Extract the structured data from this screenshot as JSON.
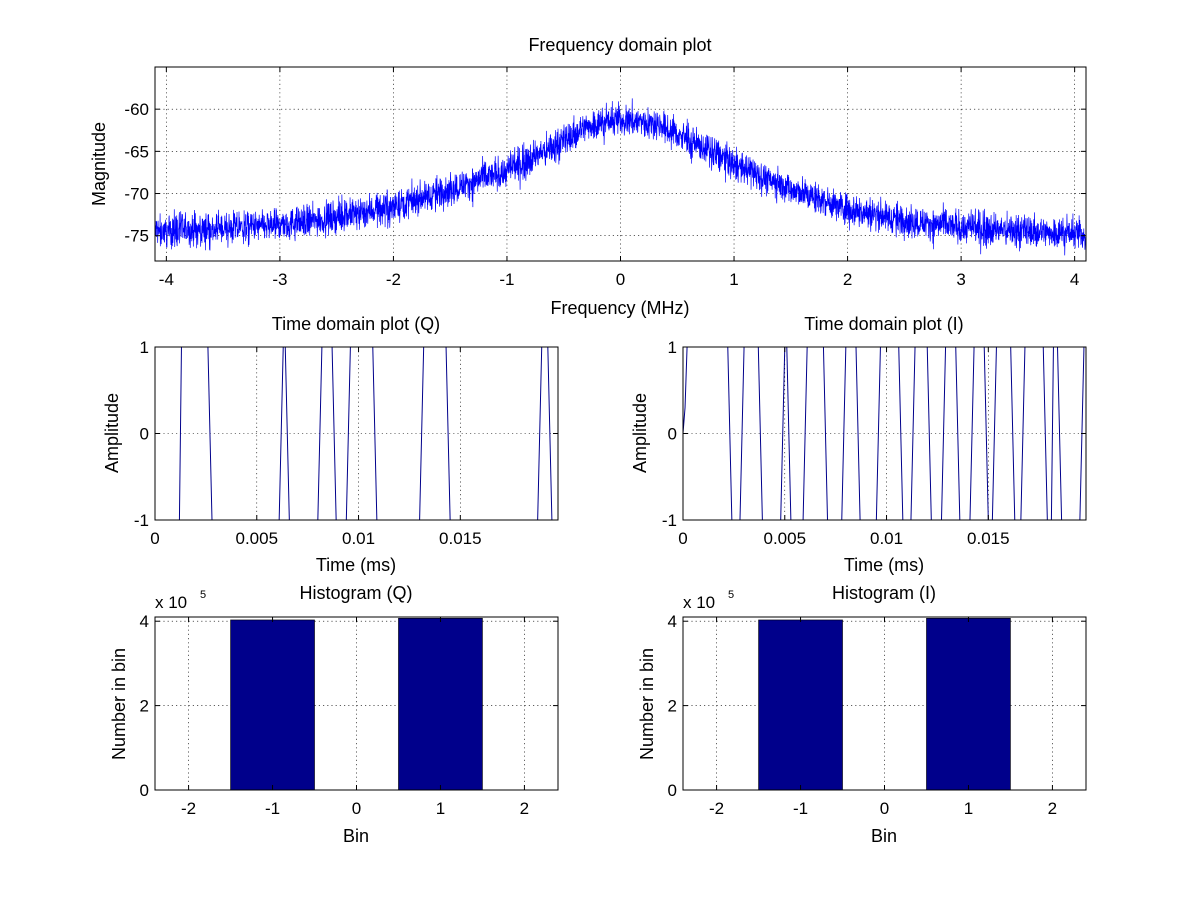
{
  "chart_data": [
    {
      "id": "freq",
      "type": "line",
      "title": "Frequency domain plot",
      "xlabel": "Frequency (MHz)",
      "ylabel": "Magnitude",
      "xlim": [
        -4.1,
        4.1
      ],
      "ylim": [
        -78,
        -55
      ],
      "xticks": [
        -4,
        -3,
        -2,
        -1,
        0,
        1,
        2,
        3,
        4
      ],
      "yticks": [
        -75,
        -70,
        -65,
        -60
      ],
      "grid": true,
      "series": [
        {
          "color": "#0000ff",
          "noisy": true,
          "x": [
            -4.1,
            -3.5,
            -3,
            -2.5,
            -2,
            -1.5,
            -1,
            -0.5,
            -0.3,
            0,
            0.3,
            0.5,
            1,
            1.5,
            2,
            2.5,
            3,
            3.5,
            4.1
          ],
          "y": [
            -74.5,
            -74.2,
            -73.8,
            -72.8,
            -71.5,
            -69.5,
            -67.3,
            -63.8,
            -62,
            -61.2,
            -61.6,
            -63,
            -66.5,
            -69.5,
            -71.8,
            -73.2,
            -74,
            -74.4,
            -74.8
          ]
        }
      ]
    },
    {
      "id": "timeQ",
      "type": "line",
      "title": "Time domain plot (Q)",
      "xlabel": "Time (ms)",
      "ylabel": "Amplitude",
      "xlim": [
        0,
        0.0198
      ],
      "ylim": [
        -1,
        1
      ],
      "xticks": [
        0,
        0.005,
        0.01,
        0.015
      ],
      "yticks": [
        -1,
        0,
        1
      ],
      "grid": true,
      "series": [
        {
          "color": "#00008b",
          "x": [
            0,
            0.0012,
            0.0013,
            0.0026,
            0.0028,
            0.0061,
            0.0063,
            0.0064,
            0.0066,
            0.008,
            0.0082,
            0.0087,
            0.0089,
            0.0094,
            0.0096,
            0.0107,
            0.0109,
            0.013,
            0.0132,
            0.0143,
            0.0145,
            0.0188,
            0.019,
            0.0193,
            0.0195,
            0.0198
          ],
          "y": [
            -1,
            -1,
            1,
            1,
            -1,
            -1,
            1,
            1,
            -1,
            -1,
            1,
            1,
            -1,
            -1,
            1,
            1,
            -1,
            -1,
            1,
            1,
            -1,
            -1,
            1,
            1,
            -1,
            -1
          ]
        }
      ]
    },
    {
      "id": "timeI",
      "type": "line",
      "title": "Time domain plot (I)",
      "xlabel": "Time (ms)",
      "ylabel": "Amplitude",
      "xlim": [
        0,
        0.0198
      ],
      "ylim": [
        -1,
        1
      ],
      "xticks": [
        0,
        0.005,
        0.01,
        0.015
      ],
      "yticks": [
        -1,
        0,
        1
      ],
      "grid": true,
      "series": [
        {
          "color": "#00008b",
          "x": [
            0,
            0.0001,
            0.0002,
            0.0022,
            0.0024,
            0.0028,
            0.003,
            0.0037,
            0.0039,
            0.0048,
            0.005,
            0.0051,
            0.0053,
            0.0059,
            0.0061,
            0.0069,
            0.0071,
            0.0078,
            0.008,
            0.0085,
            0.0087,
            0.0095,
            0.0097,
            0.0106,
            0.0108,
            0.0112,
            0.0114,
            0.012,
            0.0122,
            0.0127,
            0.0129,
            0.0134,
            0.0136,
            0.0141,
            0.0143,
            0.0148,
            0.015,
            0.0152,
            0.0154,
            0.0161,
            0.0163,
            0.0166,
            0.0168,
            0.0177,
            0.0179,
            0.0181,
            0.0182,
            0.0184,
            0.0186,
            0.0195,
            0.0197,
            0.0198
          ],
          "y": [
            0,
            0.3,
            1,
            1,
            -1,
            -1,
            1,
            1,
            -1,
            -1,
            1,
            1,
            -1,
            -1,
            1,
            1,
            -1,
            -1,
            1,
            1,
            -1,
            -1,
            1,
            1,
            -1,
            -1,
            1,
            1,
            -1,
            -1,
            1,
            1,
            -1,
            -1,
            1,
            1,
            -1,
            -1,
            1,
            1,
            -1,
            -1,
            1,
            1,
            -1,
            -1,
            1,
            1,
            -1,
            -1,
            1,
            1
          ]
        }
      ]
    },
    {
      "id": "histQ",
      "type": "bar",
      "title": "Histogram (Q)",
      "xlabel": "Bin",
      "ylabel": "Number in bin",
      "exponent_label": "x 10",
      "exponent": "5",
      "xlim": [
        -2.4,
        2.4
      ],
      "ylim": [
        0,
        4.1
      ],
      "xticks": [
        -2,
        -1,
        0,
        1,
        2
      ],
      "yticks": [
        0,
        2,
        4
      ],
      "grid": true,
      "categories": [
        -1,
        1
      ],
      "bar_width": 1,
      "color": "#00008b",
      "values": [
        4.03,
        4.07
      ]
    },
    {
      "id": "histI",
      "type": "bar",
      "title": "Histogram (I)",
      "xlabel": "Bin",
      "ylabel": "Number in bin",
      "exponent_label": "x 10",
      "exponent": "5",
      "xlim": [
        -2.4,
        2.4
      ],
      "ylim": [
        0,
        4.1
      ],
      "xticks": [
        -2,
        -1,
        0,
        1,
        2
      ],
      "yticks": [
        0,
        2,
        4
      ],
      "grid": true,
      "categories": [
        -1,
        1
      ],
      "bar_width": 1,
      "color": "#00008b",
      "values": [
        4.03,
        4.07
      ]
    }
  ]
}
